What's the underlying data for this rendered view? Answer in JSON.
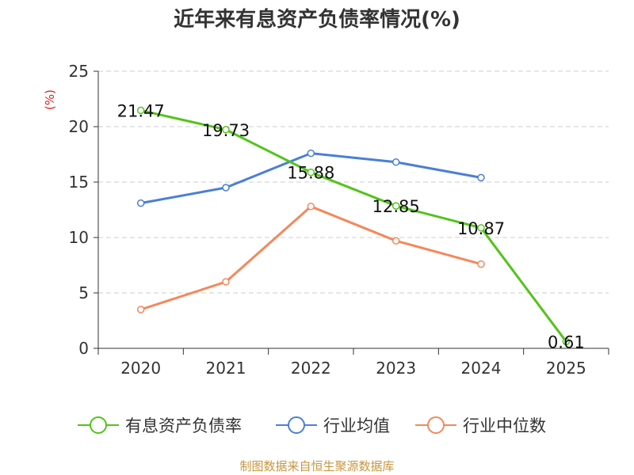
{
  "chart_data": {
    "type": "line",
    "title": "近年来有息资产负债率情况(%)",
    "ylabel": "(%)",
    "xlabel": "",
    "categories": [
      "2020",
      "2021",
      "2022",
      "2023",
      "2024",
      "2025"
    ],
    "ylim": [
      0,
      25
    ],
    "yticks": [
      0,
      5,
      10,
      15,
      20,
      25
    ],
    "grid": true,
    "legend_position": "bottom",
    "series": [
      {
        "name": "有息资产负债率",
        "color": "#52c41a",
        "values": [
          21.47,
          19.73,
          15.88,
          12.85,
          10.87,
          0.61
        ],
        "labels": [
          "21.47",
          "19.73",
          "15.88",
          "12.85",
          "10.87",
          "0.61"
        ]
      },
      {
        "name": "行业均值",
        "color": "#4a7fd6",
        "values": [
          13.1,
          14.5,
          17.6,
          16.8,
          15.4,
          null
        ]
      },
      {
        "name": "行业中位数",
        "color": "#f4885a",
        "values": [
          3.5,
          6.0,
          12.8,
          9.7,
          7.6,
          null
        ]
      }
    ]
  },
  "source": "制图数据来自恒生聚源数据库",
  "colors": {
    "title": "#333333",
    "ylabel": "#e02020",
    "source": "#c8963c",
    "axis": "#333333",
    "grid": "#cccccc"
  }
}
